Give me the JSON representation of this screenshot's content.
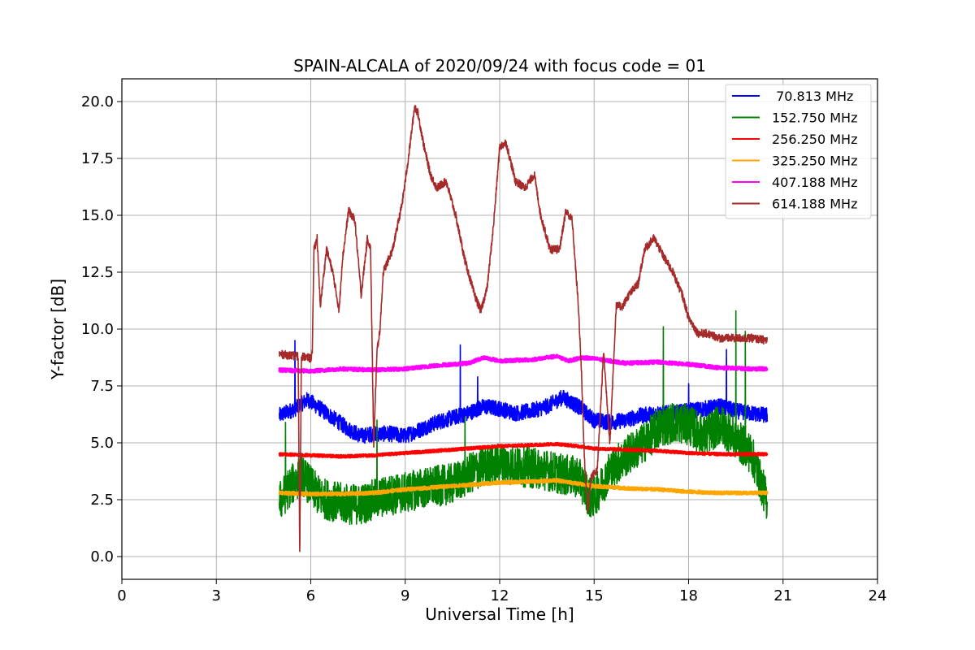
{
  "chart_data": {
    "type": "line",
    "title": "SPAIN-ALCALA of 2020/09/24 with focus code = 01",
    "xlabel": "Universal Time [h]",
    "ylabel": "Y-factor [dB]",
    "xlim": [
      0,
      24
    ],
    "ylim": [
      -1,
      21
    ],
    "xticks": [
      0,
      3,
      6,
      9,
      12,
      15,
      18,
      21,
      24
    ],
    "yticks": [
      0.0,
      2.5,
      5.0,
      7.5,
      10.0,
      12.5,
      15.0,
      17.5,
      20.0
    ],
    "xtick_labels": [
      "0",
      "3",
      "6",
      "9",
      "12",
      "15",
      "18",
      "21",
      "24"
    ],
    "ytick_labels": [
      "0.0",
      "2.5",
      "5.0",
      "7.5",
      "10.0",
      "12.5",
      "15.0",
      "17.5",
      "20.0"
    ],
    "grid": true,
    "legend_position": "top-right",
    "series": [
      {
        "name": " 70.813 MHz",
        "color": "#0000ff",
        "noise": 0.35,
        "x": [
          5.0,
          5.5,
          5.9,
          6.3,
          6.8,
          7.2,
          7.6,
          8.0,
          8.5,
          9.0,
          9.5,
          10.0,
          10.5,
          11.0,
          11.5,
          12.0,
          12.5,
          13.0,
          13.5,
          14.0,
          14.5,
          15.0,
          15.5,
          16.0,
          16.5,
          17.0,
          17.5,
          18.0,
          18.5,
          19.0,
          19.5,
          20.0,
          20.5
        ],
        "y": [
          6.2,
          6.5,
          6.9,
          6.5,
          6.0,
          5.6,
          5.3,
          5.4,
          5.4,
          5.3,
          5.6,
          5.9,
          6.1,
          6.3,
          6.6,
          6.5,
          6.3,
          6.4,
          6.6,
          7.0,
          6.6,
          6.0,
          5.9,
          6.0,
          6.2,
          6.3,
          6.3,
          6.4,
          6.5,
          6.6,
          6.4,
          6.3,
          6.2
        ],
        "spikes": [
          [
            5.5,
            9.5
          ],
          [
            10.75,
            9.3
          ],
          [
            11.3,
            7.9
          ],
          [
            18.0,
            7.6
          ],
          [
            19.2,
            9.1
          ]
        ]
      },
      {
        "name": "152.750 MHz",
        "color": "#008000",
        "noise": 0.9,
        "x": [
          5.0,
          5.3,
          5.7,
          6.0,
          6.3,
          6.8,
          7.2,
          7.6,
          8.0,
          8.5,
          9.0,
          9.5,
          10.0,
          10.5,
          11.0,
          11.5,
          12.0,
          12.5,
          13.0,
          13.5,
          14.0,
          14.5,
          14.9,
          15.2,
          15.5,
          16.0,
          16.5,
          17.0,
          17.5,
          18.0,
          18.5,
          19.0,
          19.5,
          20.0,
          20.5
        ],
        "y": [
          2.4,
          3.0,
          3.6,
          3.1,
          2.6,
          2.4,
          2.3,
          2.3,
          2.5,
          2.7,
          2.8,
          3.0,
          3.1,
          3.2,
          3.6,
          4.0,
          4.1,
          4.0,
          3.9,
          3.8,
          3.6,
          3.5,
          2.5,
          3.0,
          3.8,
          4.4,
          4.9,
          5.6,
          5.9,
          5.8,
          5.3,
          5.8,
          5.2,
          4.5,
          2.4
        ],
        "spikes": [
          [
            5.2,
            5.9
          ],
          [
            8.1,
            6.0
          ],
          [
            10.9,
            6.1
          ],
          [
            17.2,
            10.1
          ],
          [
            19.5,
            10.8
          ],
          [
            19.8,
            9.9
          ]
        ]
      },
      {
        "name": "256.250 MHz",
        "color": "#ff0000",
        "noise": 0.06,
        "x": [
          5.0,
          6.0,
          7.0,
          8.0,
          9.0,
          10.0,
          11.0,
          12.0,
          13.0,
          13.8,
          14.5,
          15.0,
          16.0,
          17.0,
          18.0,
          19.0,
          20.0,
          20.5
        ],
        "y": [
          4.5,
          4.45,
          4.4,
          4.45,
          4.55,
          4.65,
          4.75,
          4.85,
          4.9,
          4.95,
          4.85,
          4.75,
          4.7,
          4.65,
          4.55,
          4.5,
          4.5,
          4.5
        ],
        "spikes": []
      },
      {
        "name": "325.250 MHz",
        "color": "#ffa500",
        "noise": 0.07,
        "x": [
          5.0,
          6.0,
          7.0,
          8.0,
          9.0,
          10.0,
          11.0,
          12.0,
          13.0,
          13.8,
          14.5,
          15.0,
          16.0,
          17.0,
          18.0,
          19.0,
          20.0,
          20.5
        ],
        "y": [
          2.8,
          2.75,
          2.75,
          2.8,
          2.95,
          3.05,
          3.15,
          3.25,
          3.3,
          3.35,
          3.2,
          3.1,
          3.0,
          2.95,
          2.85,
          2.8,
          2.8,
          2.8
        ],
        "spikes": []
      },
      {
        "name": "407.188 MHz",
        "color": "#ff00ff",
        "noise": 0.08,
        "x": [
          5.0,
          6.0,
          7.0,
          8.0,
          9.0,
          10.0,
          11.0,
          11.5,
          12.0,
          13.0,
          13.8,
          14.2,
          14.6,
          15.0,
          16.0,
          17.0,
          18.0,
          19.0,
          20.0,
          20.5
        ],
        "y": [
          8.2,
          8.15,
          8.25,
          8.2,
          8.25,
          8.4,
          8.5,
          8.75,
          8.6,
          8.65,
          8.8,
          8.6,
          8.75,
          8.7,
          8.5,
          8.55,
          8.45,
          8.3,
          8.25,
          8.25
        ],
        "spikes": []
      },
      {
        "name": "614.188 MHz",
        "color": "#a52a2a",
        "noise": 0.18,
        "x": [
          5.0,
          5.6,
          5.65,
          5.7,
          5.75,
          6.0,
          6.05,
          6.1,
          6.2,
          6.3,
          6.5,
          6.7,
          6.9,
          7.0,
          7.2,
          7.4,
          7.6,
          7.8,
          7.9,
          8.0,
          8.1,
          8.2,
          8.3,
          8.6,
          8.9,
          9.1,
          9.3,
          9.4,
          9.6,
          9.8,
          10.0,
          10.3,
          10.6,
          10.9,
          11.2,
          11.4,
          11.6,
          11.8,
          12.0,
          12.2,
          12.5,
          12.8,
          13.1,
          13.3,
          13.6,
          13.9,
          14.1,
          14.3,
          14.5,
          14.6,
          14.7,
          14.8,
          14.9,
          15.1,
          15.3,
          15.5,
          15.7,
          15.9,
          16.1,
          16.4,
          16.6,
          16.9,
          17.2,
          17.5,
          17.8,
          18.0,
          18.3,
          18.6,
          19.0,
          19.5,
          20.0,
          20.5
        ],
        "y": [
          8.9,
          8.8,
          0.0,
          8.8,
          8.8,
          8.7,
          9.0,
          13.5,
          14.0,
          11.0,
          13.5,
          12.5,
          10.8,
          13.0,
          15.2,
          14.8,
          11.5,
          14.0,
          13.5,
          4.8,
          9.0,
          10.0,
          12.5,
          13.5,
          15.5,
          17.5,
          19.8,
          19.5,
          18.0,
          16.8,
          16.2,
          16.5,
          15.0,
          13.0,
          11.5,
          10.8,
          11.8,
          14.5,
          18.0,
          18.2,
          16.5,
          16.2,
          16.8,
          15.0,
          13.5,
          13.5,
          15.2,
          14.8,
          11.0,
          8.0,
          4.0,
          2.0,
          3.5,
          3.8,
          9.0,
          5.0,
          11.0,
          11.0,
          11.5,
          12.0,
          13.5,
          14.0,
          13.2,
          12.5,
          11.5,
          10.5,
          9.8,
          9.8,
          9.6,
          9.6,
          9.6,
          9.5
        ],
        "spikes": []
      }
    ]
  }
}
